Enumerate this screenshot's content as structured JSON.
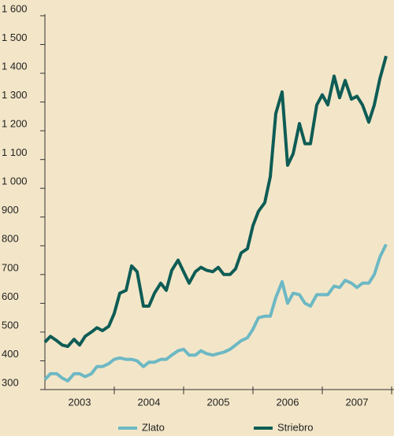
{
  "chart_data": {
    "type": "line",
    "xlim": [
      2003,
      2008
    ],
    "xticks": [
      {
        "value": 2003.5,
        "label": "2003"
      },
      {
        "value": 2004.5,
        "label": "2004"
      },
      {
        "value": 2005.5,
        "label": "2005"
      },
      {
        "value": 2006.5,
        "label": "2006"
      },
      {
        "value": 2007.5,
        "label": "2007"
      }
    ],
    "xtick_marks": [
      2004,
      2005,
      2006,
      2007,
      2008
    ],
    "ylim": [
      300,
      1600
    ],
    "yticks": [
      300,
      400,
      500,
      600,
      700,
      800,
      900,
      {
        "value": 1000,
        "label": "1 000"
      },
      {
        "value": 1100,
        "label": "1 100"
      },
      {
        "value": 1200,
        "label": "1 200"
      },
      {
        "value": 1300,
        "label": "1 300"
      },
      {
        "value": 1400,
        "label": "1 400"
      },
      {
        "value": 1500,
        "label": "1 500"
      },
      {
        "value": 1600,
        "label": "1 600"
      }
    ],
    "grid": false,
    "legend": "bottom",
    "x": [
      2003.0,
      2003.08,
      2003.17,
      2003.25,
      2003.33,
      2003.42,
      2003.5,
      2003.58,
      2003.67,
      2003.75,
      2003.83,
      2003.92,
      2004.0,
      2004.08,
      2004.17,
      2004.25,
      2004.33,
      2004.42,
      2004.5,
      2004.58,
      2004.67,
      2004.75,
      2004.83,
      2004.92,
      2005.0,
      2005.08,
      2005.17,
      2005.25,
      2005.33,
      2005.42,
      2005.5,
      2005.58,
      2005.67,
      2005.75,
      2005.83,
      2005.92,
      2006.0,
      2006.08,
      2006.17,
      2006.25,
      2006.33,
      2006.42,
      2006.5,
      2006.58,
      2006.67,
      2006.75,
      2006.83,
      2006.92,
      2007.0,
      2007.08,
      2007.17,
      2007.25,
      2007.33,
      2007.42,
      2007.5,
      2007.58,
      2007.67,
      2007.75,
      2007.83,
      2007.92
    ],
    "series": [
      {
        "name": "Zlato",
        "color": "#6db8c4",
        "values": [
          335,
          355,
          355,
          340,
          330,
          355,
          355,
          345,
          355,
          380,
          380,
          390,
          405,
          410,
          405,
          405,
          400,
          380,
          395,
          395,
          405,
          405,
          420,
          435,
          440,
          420,
          420,
          435,
          425,
          420,
          425,
          430,
          440,
          455,
          470,
          480,
          510,
          550,
          555,
          555,
          620,
          675,
          600,
          635,
          630,
          600,
          590,
          630,
          630,
          630,
          660,
          655,
          680,
          670,
          655,
          670,
          670,
          700,
          760,
          805
        ]
      },
      {
        "name": "Striebro",
        "color": "#0e5c55",
        "values": [
          465,
          485,
          470,
          455,
          450,
          475,
          455,
          485,
          500,
          515,
          505,
          520,
          565,
          635,
          645,
          730,
          710,
          590,
          590,
          635,
          670,
          645,
          715,
          750,
          710,
          670,
          710,
          725,
          715,
          710,
          725,
          700,
          700,
          720,
          775,
          790,
          870,
          920,
          950,
          1040,
          1260,
          1335,
          1080,
          1120,
          1225,
          1155,
          1155,
          1290,
          1325,
          1290,
          1390,
          1315,
          1375,
          1310,
          1320,
          1290,
          1230,
          1290,
          1380,
          1460
        ]
      }
    ]
  }
}
